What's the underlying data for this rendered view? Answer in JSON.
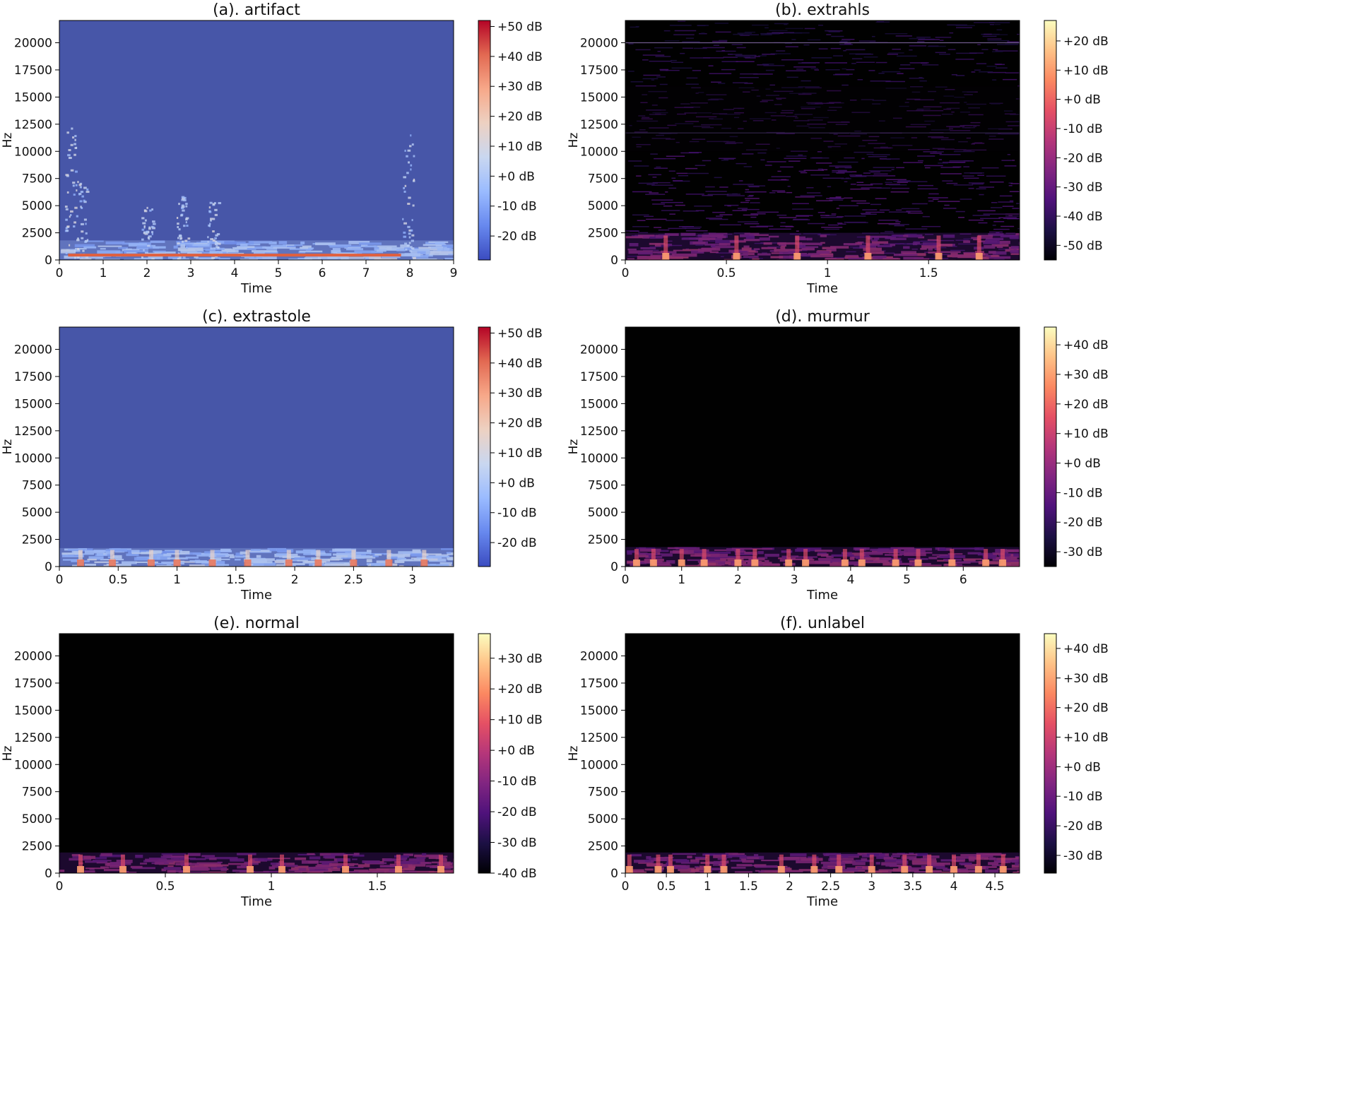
{
  "figure": {
    "panels": [
      {
        "id": "a"
      },
      {
        "id": "b"
      },
      {
        "id": "c"
      },
      {
        "id": "d"
      },
      {
        "id": "e"
      },
      {
        "id": "f"
      }
    ]
  },
  "chart_data": [
    {
      "type": "heatmap",
      "title": "(a). artifact",
      "xlabel": "Time",
      "ylabel": "Hz",
      "xlim": [
        0,
        9
      ],
      "ylim": [
        0,
        22050
      ],
      "x_ticks": [
        0,
        1,
        2,
        3,
        4,
        5,
        6,
        7,
        8,
        9
      ],
      "x_tick_labels": [
        "0",
        "1",
        "2",
        "3",
        "4",
        "5",
        "6",
        "7",
        "8",
        "9"
      ],
      "y_ticks": [
        0,
        2500,
        5000,
        7500,
        10000,
        12500,
        15000,
        17500,
        20000
      ],
      "y_tick_labels": [
        "0",
        "2500",
        "5000",
        "7500",
        "10000",
        "12500",
        "15000",
        "17500",
        "20000"
      ],
      "colormap": "coolwarm",
      "colorbar": {
        "range": [
          -28,
          52
        ],
        "ticks": [
          50,
          40,
          30,
          20,
          10,
          0,
          -10,
          -20
        ],
        "tick_labels": [
          "+50 dB",
          "+40 dB",
          "+30 dB",
          "+20 dB",
          "+10 dB",
          "+0 dB",
          "-10 dB",
          "-20 dB"
        ]
      },
      "energy": {
        "band_top_hz": 1800,
        "hot_line_hz": 450,
        "hot_line_range": [
          0.2,
          7.8
        ],
        "bursts": [
          {
            "t": 0.25,
            "top_hz": 12500
          },
          {
            "t": 0.5,
            "top_hz": 7500
          },
          {
            "t": 2.0,
            "top_hz": 5000
          },
          {
            "t": 2.8,
            "top_hz": 6000
          },
          {
            "t": 3.5,
            "top_hz": 5500
          },
          {
            "t": 7.95,
            "top_hz": 12500
          }
        ]
      }
    },
    {
      "type": "heatmap",
      "title": "(b). extrahls",
      "xlabel": "Time",
      "ylabel": "Hz",
      "xlim": [
        0,
        1.95
      ],
      "ylim": [
        0,
        22050
      ],
      "x_ticks": [
        0,
        0.5,
        1,
        1.5
      ],
      "x_tick_labels": [
        "0",
        "0.5",
        "1",
        "1.5"
      ],
      "y_ticks": [
        0,
        2500,
        5000,
        7500,
        10000,
        12500,
        15000,
        17500,
        20000
      ],
      "y_tick_labels": [
        "0",
        "2500",
        "5000",
        "7500",
        "10000",
        "12500",
        "15000",
        "17500",
        "20000"
      ],
      "colormap": "magma",
      "colorbar": {
        "range": [
          -55,
          27
        ],
        "ticks": [
          20,
          10,
          0,
          -10,
          -20,
          -30,
          -40,
          -50
        ],
        "tick_labels": [
          "+20 dB",
          "+10 dB",
          "+0 dB",
          "-10 dB",
          "-20 dB",
          "-30 dB",
          "-40 dB",
          "-50 dB"
        ]
      },
      "energy": {
        "noise_full_band": true,
        "line_hz": 20000,
        "band_top_hz": 2500,
        "beats": [
          0.2,
          0.55,
          0.85,
          1.2,
          1.55,
          1.75
        ]
      }
    },
    {
      "type": "heatmap",
      "title": "(c). extrastole",
      "xlabel": "Time",
      "ylabel": "Hz",
      "xlim": [
        0,
        3.35
      ],
      "ylim": [
        0,
        22050
      ],
      "x_ticks": [
        0,
        0.5,
        1,
        1.5,
        2,
        2.5,
        3
      ],
      "x_tick_labels": [
        "0",
        "0.5",
        "1",
        "1.5",
        "2",
        "2.5",
        "3"
      ],
      "y_ticks": [
        0,
        2500,
        5000,
        7500,
        10000,
        12500,
        15000,
        17500,
        20000
      ],
      "y_tick_labels": [
        "0",
        "2500",
        "5000",
        "7500",
        "10000",
        "12500",
        "15000",
        "17500",
        "20000"
      ],
      "colormap": "coolwarm",
      "colorbar": {
        "range": [
          -28,
          52
        ],
        "ticks": [
          50,
          40,
          30,
          20,
          10,
          0,
          -10,
          -20
        ],
        "tick_labels": [
          "+50 dB",
          "+40 dB",
          "+30 dB",
          "+20 dB",
          "+10 dB",
          "+0 dB",
          "-10 dB",
          "-20 dB"
        ]
      },
      "energy": {
        "band_top_hz": 1700,
        "beats": [
          0.18,
          0.45,
          0.78,
          1.0,
          1.3,
          1.6,
          1.95,
          2.2,
          2.5,
          2.8,
          3.1
        ]
      }
    },
    {
      "type": "heatmap",
      "title": "(d). murmur",
      "xlabel": "Time",
      "ylabel": "Hz",
      "xlim": [
        0,
        7.0
      ],
      "ylim": [
        0,
        22050
      ],
      "x_ticks": [
        0,
        1,
        2,
        3,
        4,
        5,
        6
      ],
      "x_tick_labels": [
        "0",
        "1",
        "2",
        "3",
        "4",
        "5",
        "6"
      ],
      "y_ticks": [
        0,
        2500,
        5000,
        7500,
        10000,
        12500,
        15000,
        17500,
        20000
      ],
      "y_tick_labels": [
        "0",
        "2500",
        "5000",
        "7500",
        "10000",
        "12500",
        "15000",
        "17500",
        "20000"
      ],
      "colormap": "magma",
      "colorbar": {
        "range": [
          -35,
          46
        ],
        "ticks": [
          40,
          30,
          20,
          10,
          0,
          -10,
          -20,
          -30
        ],
        "tick_labels": [
          "+40 dB",
          "+30 dB",
          "+20 dB",
          "+10 dB",
          "+0 dB",
          "-10 dB",
          "-20 dB",
          "-30 dB"
        ]
      },
      "energy": {
        "band_top_hz": 1800,
        "beats": [
          0.2,
          0.5,
          1.0,
          1.4,
          2.0,
          2.3,
          2.9,
          3.2,
          3.9,
          4.2,
          4.8,
          5.2,
          5.8,
          6.4,
          6.7
        ]
      }
    },
    {
      "type": "heatmap",
      "title": "(e). normal",
      "xlabel": "Time",
      "ylabel": "Hz",
      "xlim": [
        0,
        1.86
      ],
      "ylim": [
        0,
        22050
      ],
      "x_ticks": [
        0,
        0.5,
        1,
        1.5
      ],
      "x_tick_labels": [
        "0",
        "0.5",
        "1",
        "1.5"
      ],
      "y_ticks": [
        0,
        2500,
        5000,
        7500,
        10000,
        12500,
        15000,
        17500,
        20000
      ],
      "y_tick_labels": [
        "0",
        "2500",
        "5000",
        "7500",
        "10000",
        "12500",
        "15000",
        "17500",
        "20000"
      ],
      "colormap": "magma",
      "colorbar": {
        "range": [
          -40,
          38
        ],
        "ticks": [
          30,
          20,
          10,
          0,
          -10,
          -20,
          -30,
          -40
        ],
        "tick_labels": [
          "+30 dB",
          "+20 dB",
          "+10 dB",
          "+0 dB",
          "-10 dB",
          "-20 dB",
          "-30 dB",
          "-40 dB"
        ]
      },
      "energy": {
        "band_top_hz": 1900,
        "beats": [
          0.1,
          0.3,
          0.6,
          0.9,
          1.05,
          1.35,
          1.6,
          1.8
        ]
      }
    },
    {
      "type": "heatmap",
      "title": "(f). unlabel",
      "xlabel": "Time",
      "ylabel": "Hz",
      "xlim": [
        0,
        4.8
      ],
      "ylim": [
        0,
        22050
      ],
      "x_ticks": [
        0,
        0.5,
        1,
        1.5,
        2,
        2.5,
        3,
        3.5,
        4,
        4.5
      ],
      "x_tick_labels": [
        "0",
        "0.5",
        "1",
        "1.5",
        "2",
        "2.5",
        "3",
        "3.5",
        "4",
        "4.5"
      ],
      "y_ticks": [
        0,
        2500,
        5000,
        7500,
        10000,
        12500,
        15000,
        17500,
        20000
      ],
      "y_tick_labels": [
        "0",
        "2500",
        "5000",
        "7500",
        "10000",
        "12500",
        "15000",
        "17500",
        "20000"
      ],
      "colormap": "magma",
      "colorbar": {
        "range": [
          -36,
          45
        ],
        "ticks": [
          40,
          30,
          20,
          10,
          0,
          -10,
          -20,
          -30
        ],
        "tick_labels": [
          "+40 dB",
          "+30 dB",
          "+20 dB",
          "+10 dB",
          "+0 dB",
          "-10 dB",
          "-20 dB",
          "-30 dB"
        ]
      },
      "energy": {
        "band_top_hz": 1900,
        "beats": [
          0.05,
          0.4,
          0.55,
          1.0,
          1.2,
          1.9,
          2.3,
          2.6,
          3.0,
          3.4,
          3.7,
          4.0,
          4.3,
          4.6
        ]
      }
    }
  ]
}
